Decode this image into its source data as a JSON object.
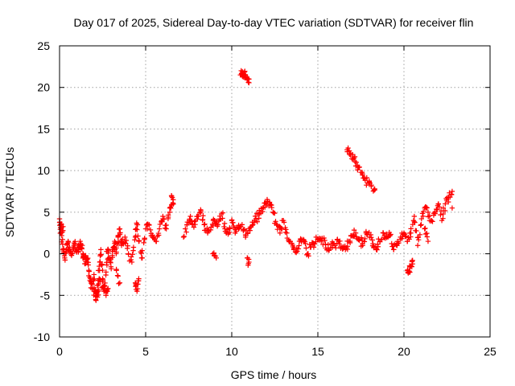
{
  "chart_data": {
    "type": "scatter",
    "title": "Day 017 of 2025, Sidereal Day-to-day VTEC variation (SDTVAR) for receiver flin",
    "xlabel": "GPS time / hours",
    "ylabel": "SDTVAR / TECUs",
    "xlim": [
      0,
      25
    ],
    "ylim": [
      -10,
      25
    ],
    "xticks": [
      0,
      5,
      10,
      15,
      20,
      25
    ],
    "yticks": [
      -10,
      -5,
      0,
      5,
      10,
      15,
      20,
      25
    ],
    "xtick_labels": [
      "0",
      "5",
      "10",
      "15",
      "20",
      "25"
    ],
    "ytick_labels": [
      "-10",
      "-5",
      "0",
      "5",
      "10",
      "15",
      "20",
      "25"
    ],
    "grid": true,
    "marker": "+",
    "color": "#ff0000",
    "series": [
      {
        "name": "SDTVAR",
        "x": [
          0.0,
          0.1,
          0.2,
          0.3,
          0.4,
          0.5,
          0.6,
          0.7,
          0.8,
          0.9,
          1.0,
          1.1,
          1.2,
          1.3,
          1.4,
          1.5,
          1.6,
          1.7,
          1.8,
          1.9,
          2.0,
          2.1,
          2.2,
          2.3,
          2.4,
          2.5,
          2.6,
          2.7,
          2.8,
          2.9,
          3.0,
          3.1,
          3.2,
          3.3,
          3.4,
          3.5,
          3.6,
          3.8,
          4.0,
          4.2,
          4.4,
          4.5,
          4.6,
          4.8,
          5.0,
          5.2,
          5.4,
          5.6,
          5.8,
          6.0,
          6.2,
          6.4,
          6.6,
          7.2,
          7.4,
          7.6,
          7.8,
          8.0,
          8.2,
          8.4,
          8.6,
          8.8,
          9.0,
          9.2,
          9.4,
          9.6,
          9.8,
          10.0,
          10.2,
          10.4,
          10.6,
          10.8,
          11.0,
          11.2,
          11.4,
          11.6,
          11.8,
          12.0,
          12.2,
          12.4,
          12.6,
          12.8,
          13.0,
          13.2,
          13.4,
          13.6,
          13.8,
          14.0,
          14.2,
          14.4,
          14.6,
          14.8,
          15.0,
          15.2,
          15.4,
          15.6,
          15.8,
          16.0,
          16.2,
          16.4,
          16.6,
          16.8,
          17.0,
          17.2,
          17.4,
          17.6,
          17.8,
          18.0,
          18.2,
          18.4,
          18.6,
          18.8,
          19.0,
          19.2,
          19.4,
          19.6,
          19.8,
          20.0,
          20.2,
          20.4,
          20.6,
          20.8,
          21.0,
          21.2,
          21.4,
          21.6,
          21.8,
          22.0,
          22.2,
          22.4,
          22.6,
          22.8,
          10.5,
          10.6,
          10.7,
          10.8,
          10.9,
          11.0,
          16.7,
          16.9,
          17.1,
          17.3,
          17.5,
          17.7,
          17.9,
          18.1,
          18.3,
          0.05,
          0.1,
          0.2,
          1.4,
          1.6,
          2.0,
          2.1,
          2.2,
          2.3,
          2.5,
          2.7,
          2.8,
          3.3,
          3.5,
          4.4,
          4.5,
          4.6,
          10.9,
          11.0,
          20.2,
          20.3,
          20.4,
          20.5,
          21.2,
          21.4,
          22.8,
          6.5,
          6.6,
          6.4,
          8.9,
          9.1
        ],
        "y": [
          4.2,
          2.5,
          0.5,
          -0.5,
          0.5,
          1.5,
          0.3,
          -0.2,
          0.8,
          1.2,
          0.2,
          0.5,
          1.5,
          0.6,
          -0.4,
          -1.2,
          -0.6,
          -2.0,
          -3.0,
          -4.2,
          -2.5,
          -5.5,
          -3.8,
          -1.5,
          0.5,
          -3.0,
          -4.5,
          -2.2,
          0.5,
          -0.5,
          -1.8,
          0.5,
          1.5,
          0.2,
          2.0,
          3.0,
          1.0,
          2.0,
          0.0,
          -1.0,
          2.0,
          3.5,
          1.5,
          -0.5,
          3.0,
          3.5,
          2.0,
          1.5,
          3.0,
          4.5,
          3.0,
          5.0,
          6.5,
          2.0,
          3.5,
          4.5,
          3.2,
          4.5,
          5.0,
          3.5,
          2.5,
          3.2,
          4.0,
          3.5,
          4.8,
          3.0,
          2.5,
          4.0,
          2.5,
          3.0,
          3.5,
          2.0,
          3.0,
          3.8,
          4.2,
          4.8,
          5.5,
          6.0,
          6.2,
          5.0,
          3.5,
          2.5,
          4.0,
          2.5,
          1.5,
          0.5,
          0.3,
          1.8,
          1.5,
          0.0,
          0.8,
          1.2,
          1.8,
          1.5,
          1.6,
          0.5,
          1.2,
          1.0,
          1.5,
          0.8,
          0.5,
          1.5,
          2.2,
          2.5,
          1.8,
          1.0,
          2.5,
          2.0,
          1.2,
          0.5,
          1.5,
          2.5,
          2.0,
          2.2,
          0.5,
          1.0,
          2.0,
          2.5,
          1.5,
          2.5,
          4.5,
          1.0,
          3.5,
          5.5,
          5.0,
          4.0,
          5.0,
          6.0,
          4.0,
          6.0,
          6.8,
          7.5,
          21.5,
          21.7,
          21.6,
          21.3,
          21.1,
          21.0,
          12.5,
          12.1,
          11.5,
          10.6,
          9.8,
          9.1,
          8.5,
          8.1,
          7.8,
          3.5,
          3.0,
          2.8,
          -0.5,
          -1.0,
          -4.5,
          -4.8,
          -5.2,
          -3.0,
          -4.0,
          -5.0,
          -4.2,
          -2.0,
          -3.5,
          -3.5,
          -4.5,
          -3.0,
          -0.5,
          -1.0,
          -2.0,
          -2.2,
          -1.5,
          -0.8,
          3.0,
          1.5,
          5.5,
          7.0,
          6.0,
          5.5,
          0.0,
          -0.5
        ]
      }
    ]
  }
}
